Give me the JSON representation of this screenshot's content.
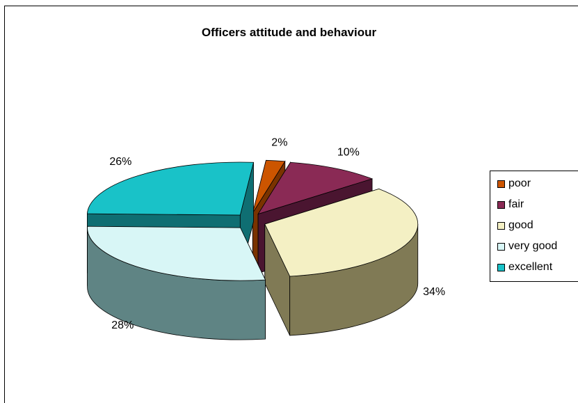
{
  "chart_data": {
    "type": "pie",
    "title": "Officers attitude and behaviour",
    "exploded": true,
    "three_d": true,
    "legend_position": "right",
    "slices": [
      {
        "label": "poor",
        "value": 2,
        "display": "2%",
        "color": "#cc5500",
        "side_color": "#7a3300"
      },
      {
        "label": "fair",
        "value": 10,
        "display": "10%",
        "color": "#8a2a55",
        "side_color": "#4a1530"
      },
      {
        "label": "good",
        "value": 34,
        "display": "34%",
        "color": "#f4f0c4",
        "side_color": "#807a55"
      },
      {
        "label": "very good",
        "value": 28,
        "display": "28%",
        "color": "#d8f6f6",
        "side_color": "#5f8484"
      },
      {
        "label": "excellent",
        "value": 26,
        "display": "26%",
        "color": "#19c2c8",
        "side_color": "#0f6e72"
      }
    ]
  }
}
